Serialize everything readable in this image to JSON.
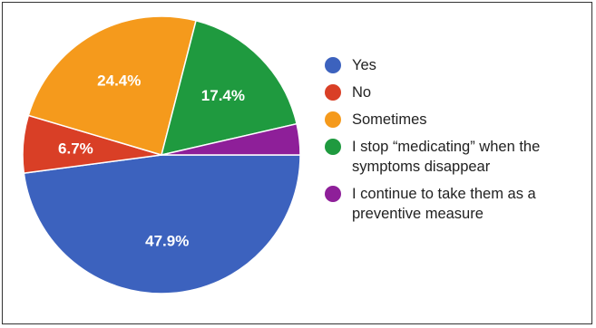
{
  "chart_data": {
    "type": "pie",
    "title": "",
    "slices": [
      {
        "label": "Yes",
        "value": 47.9,
        "display": "47.9%",
        "color": "#3c62be"
      },
      {
        "label": "No",
        "value": 6.7,
        "display": "6.7%",
        "color": "#d93f26"
      },
      {
        "label": "Sometimes",
        "value": 24.4,
        "display": "24.4%",
        "color": "#f59a1c"
      },
      {
        "label": "I stop “medicating” when the symptoms disappear",
        "value": 17.4,
        "display": "17.4%",
        "color": "#1f9a3f"
      },
      {
        "label": "I continue to take them as a preventive measure",
        "value": 3.6,
        "display": "",
        "color": "#8e1f99"
      }
    ],
    "legend_position": "right"
  }
}
